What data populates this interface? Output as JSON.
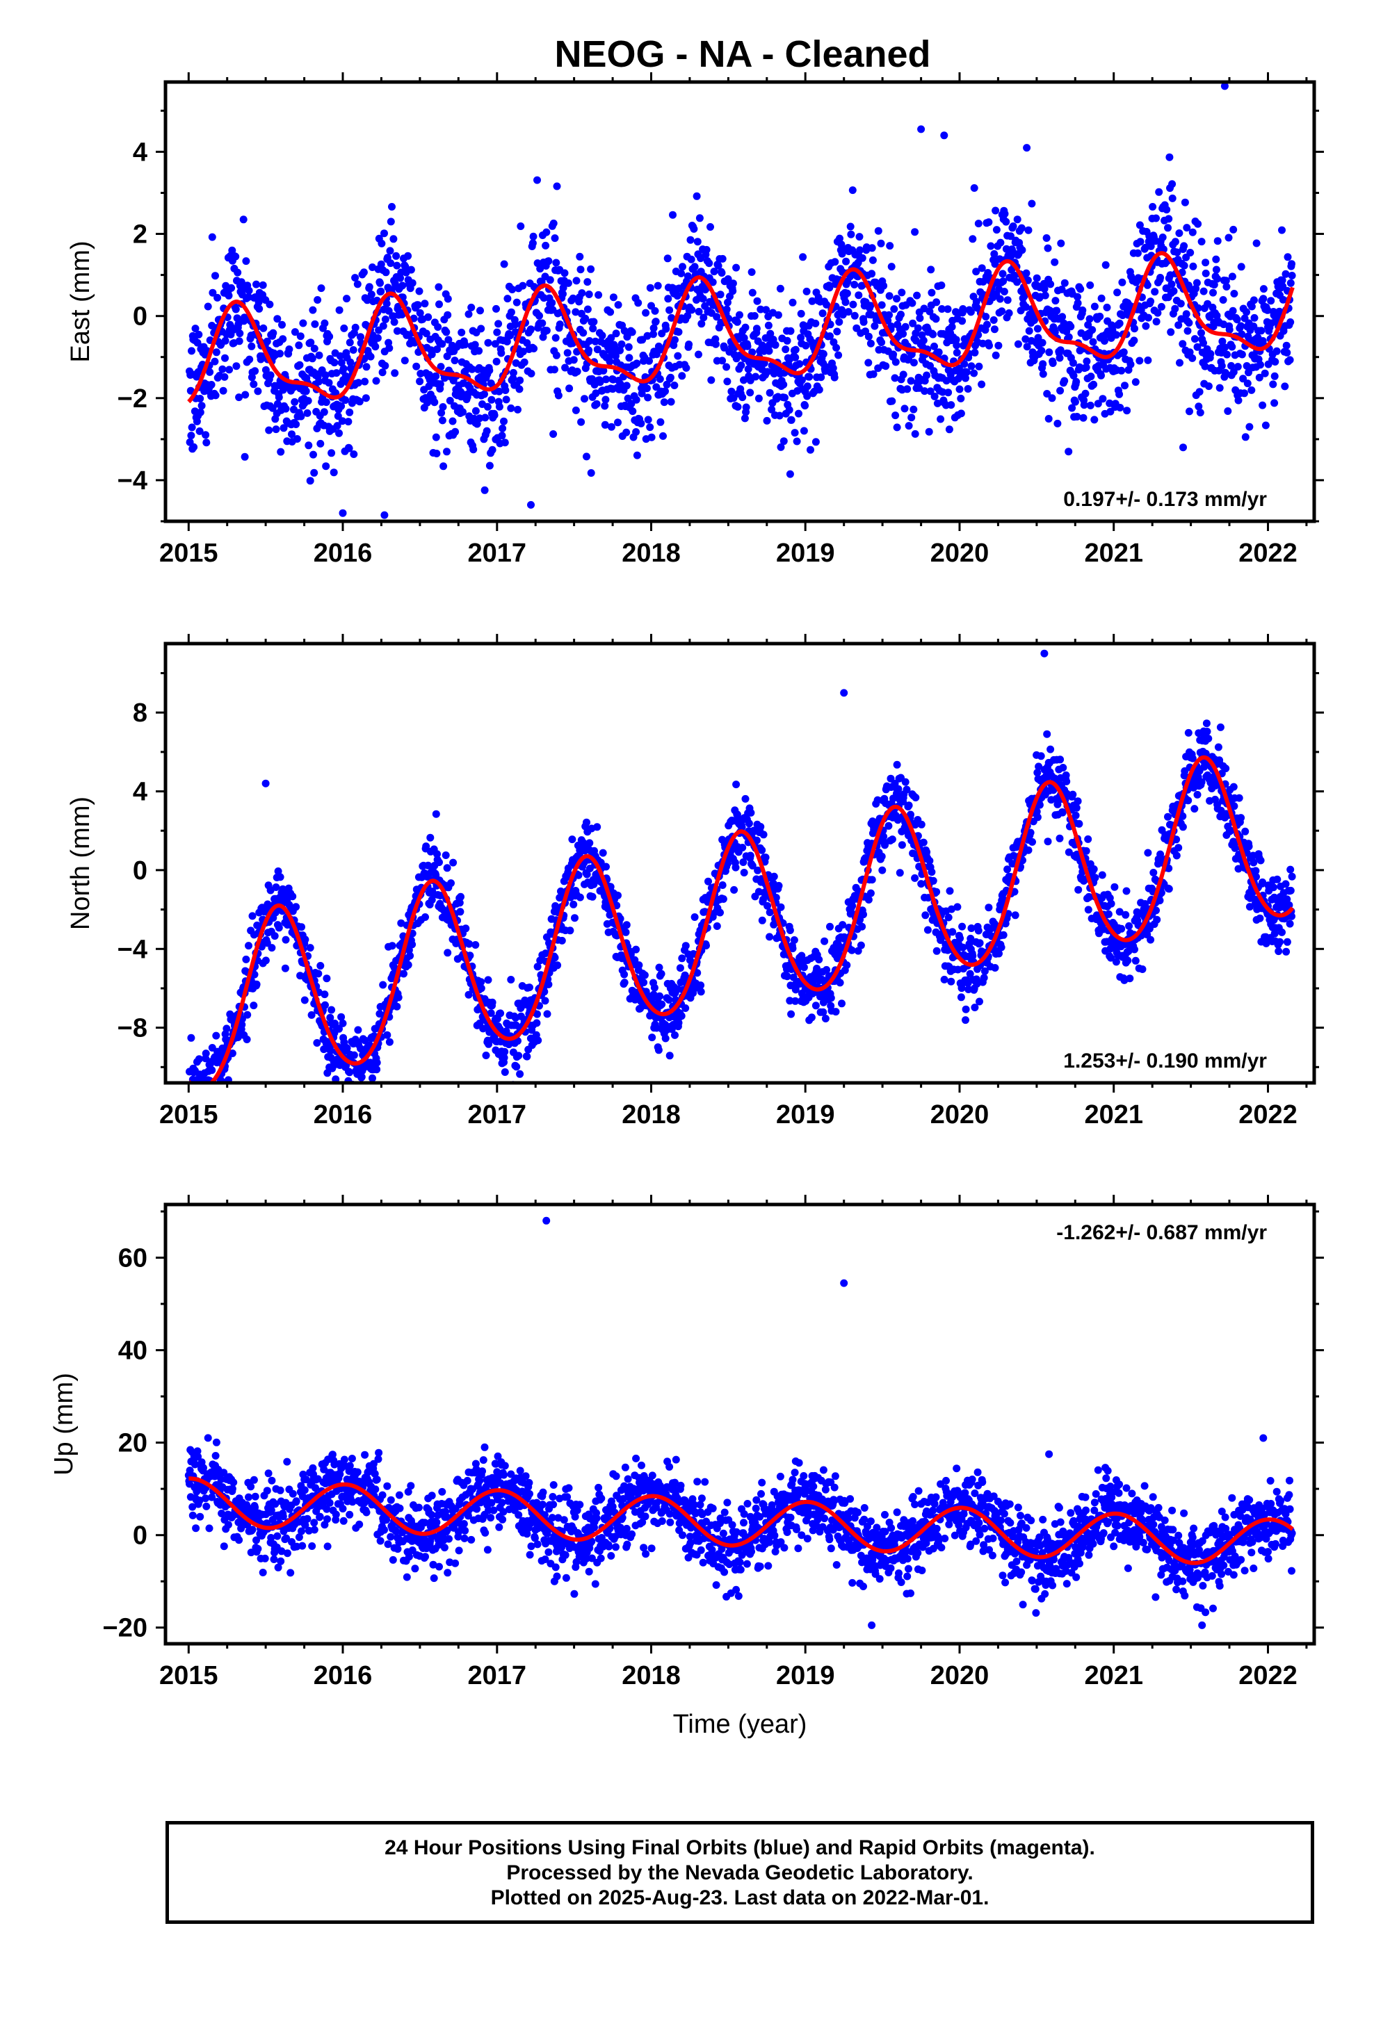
{
  "chart_data": [
    {
      "type": "scatter",
      "title": "NEOG  - NA - Cleaned",
      "ylabel": "East (mm)",
      "xlabel": "",
      "xlim": [
        2014.85,
        2022.3
      ],
      "ylim": [
        -5.0,
        5.7
      ],
      "xticks": [
        2015,
        2016,
        2017,
        2018,
        2019,
        2020,
        2021,
        2022
      ],
      "xtick_labels": [
        "2015",
        "2016",
        "2017",
        "2018",
        "2019",
        "2020",
        "2021",
        "2022"
      ],
      "yticks": [
        -4,
        -2,
        0,
        2,
        4
      ],
      "ytick_labels": [
        "−4",
        "−2",
        "0",
        "2",
        "4"
      ],
      "rate_label": "0.197+/- 0.173 mm/yr",
      "rate_position": "bottom-right",
      "data_span": [
        2015.0,
        2022.16
      ],
      "model": {
        "offset": -0.5,
        "trend": 0.197,
        "annual_cos": -0.55,
        "annual_sin": 0.95,
        "semi_cos": -0.35,
        "semi_sin": -0.2
      },
      "scatter_sd": 0.9,
      "outliers": [
        {
          "x": 2021.72,
          "y": 5.6
        },
        {
          "x": 2019.75,
          "y": 4.55
        },
        {
          "x": 2019.9,
          "y": 4.4
        },
        {
          "x": 2016.0,
          "y": -4.8
        },
        {
          "x": 2016.27,
          "y": -4.85
        },
        {
          "x": 2021.45,
          "y": -3.2
        },
        {
          "x": 2021.88,
          "y": -2.7
        },
        {
          "x": 2017.22,
          "y": -4.6
        }
      ],
      "series": [
        {
          "name": "",
          "kind": "points",
          "color": "#0000ff"
        },
        {
          "name": "",
          "kind": "fit",
          "color": "#ff0000"
        }
      ]
    },
    {
      "type": "scatter",
      "title": "",
      "ylabel": "North (mm)",
      "xlabel": "",
      "xlim": [
        2014.85,
        2022.3
      ],
      "ylim": [
        -10.8,
        11.5
      ],
      "xticks": [
        2015,
        2016,
        2017,
        2018,
        2019,
        2020,
        2021,
        2022
      ],
      "xtick_labels": [
        "2015",
        "2016",
        "2017",
        "2018",
        "2019",
        "2020",
        "2021",
        "2022"
      ],
      "yticks": [
        -8,
        -4,
        0,
        4,
        8
      ],
      "ytick_labels": [
        "−8",
        "−4",
        "0",
        "4",
        "8"
      ],
      "rate_label": "1.253+/- 0.190 mm/yr",
      "rate_position": "bottom-right",
      "data_span": [
        2015.0,
        2022.16
      ],
      "model": {
        "offset": -2.85,
        "trend": 1.253,
        "annual_cos": -3.75,
        "annual_sin": -2.15,
        "semi_cos": 0.25,
        "semi_sin": 0.3
      },
      "scatter_sd": 0.95,
      "outliers": [
        {
          "x": 2019.25,
          "y": 9.0
        },
        {
          "x": 2020.55,
          "y": 11.0
        },
        {
          "x": 2015.9,
          "y": -10.3
        },
        {
          "x": 2017.0,
          "y": -8.7
        },
        {
          "x": 2015.5,
          "y": 4.4
        }
      ],
      "series": [
        {
          "name": "",
          "kind": "points",
          "color": "#0000ff"
        },
        {
          "name": "",
          "kind": "fit",
          "color": "#ff0000"
        }
      ]
    },
    {
      "type": "scatter",
      "title": "",
      "ylabel": "Up (mm)",
      "xlabel": "Time (year)",
      "xlim": [
        2014.85,
        2022.3
      ],
      "ylim": [
        -23.5,
        71.5
      ],
      "xticks": [
        2015,
        2016,
        2017,
        2018,
        2019,
        2020,
        2021,
        2022
      ],
      "xtick_labels": [
        "2015",
        "2016",
        "2017",
        "2018",
        "2019",
        "2020",
        "2021",
        "2022"
      ],
      "yticks": [
        -20,
        0,
        20,
        40,
        60
      ],
      "ytick_labels": [
        "−20",
        "0",
        "20",
        "40",
        "60"
      ],
      "rate_label": "-1.262+/- 0.687 mm/yr",
      "rate_position": "top-right",
      "data_span": [
        2015.0,
        2022.16
      ],
      "model": {
        "offset": 2.8,
        "trend": -1.262,
        "annual_cos": 5.0,
        "annual_sin": 0.5,
        "semi_cos": 0.0,
        "semi_sin": 0.0
      },
      "scatter_sd": 4.0,
      "outliers": [
        {
          "x": 2017.32,
          "y": 68.0
        },
        {
          "x": 2019.25,
          "y": 54.5
        },
        {
          "x": 2020.58,
          "y": 17.5
        },
        {
          "x": 2021.97,
          "y": 21.0
        },
        {
          "x": 2016.92,
          "y": 19.0
        },
        {
          "x": 2019.43,
          "y": -19.5
        }
      ],
      "series": [
        {
          "name": "",
          "kind": "points",
          "color": "#0000ff"
        },
        {
          "name": "",
          "kind": "fit",
          "color": "#ff0000"
        }
      ]
    }
  ],
  "footer": {
    "line1": "24 Hour Positions Using Final Orbits (blue) and Rapid Orbits (magenta).",
    "line2": "Processed by the Nevada Geodetic Laboratory.",
    "line3": "Plotted on 2025-Aug-23. Last data on 2022-Mar-01."
  },
  "colors": {
    "points": "#0000ff",
    "fit": "#ff0000",
    "frame": "#000000"
  }
}
